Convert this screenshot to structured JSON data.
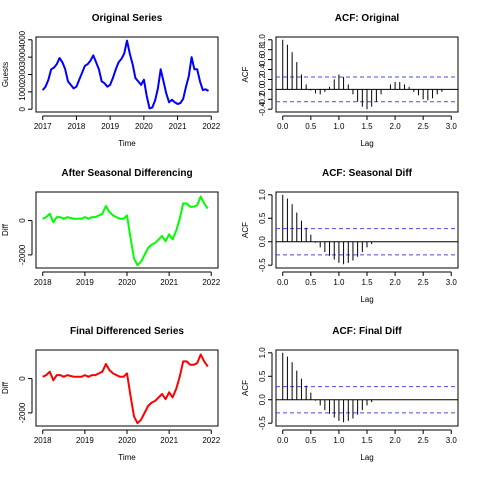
{
  "chart_data": [
    {
      "id": "original",
      "type": "line",
      "title": "Original Series",
      "xlabel": "Time",
      "ylabel": "Guests",
      "xlim": [
        2017,
        2022
      ],
      "ylim": [
        0,
        4000
      ],
      "xticks": [
        2017,
        2018,
        2019,
        2020,
        2021,
        2022
      ],
      "yticks": [
        0,
        1000,
        2000,
        3000,
        4000
      ],
      "color": "#0000ff",
      "series": [
        {
          "x": [
            2017.0,
            2017.083,
            2017.167,
            2017.25,
            2017.333,
            2017.417,
            2017.5,
            2017.583,
            2017.667,
            2017.75,
            2017.833,
            2017.917,
            2018.0,
            2018.083,
            2018.167,
            2018.25,
            2018.333,
            2018.417,
            2018.5,
            2018.583,
            2018.667,
            2018.75,
            2018.833,
            2018.917,
            2019.0,
            2019.083,
            2019.167,
            2019.25,
            2019.333,
            2019.417,
            2019.5,
            2019.583,
            2019.667,
            2019.75,
            2019.833,
            2019.917,
            2020.0,
            2020.083,
            2020.167,
            2020.25,
            2020.333,
            2020.417,
            2020.5,
            2020.583,
            2020.667,
            2020.75,
            2020.833,
            2020.917,
            2021.0,
            2021.083,
            2021.167,
            2021.25,
            2021.333,
            2021.417,
            2021.5,
            2021.583,
            2021.667,
            2021.75,
            2021.833,
            2021.917
          ],
          "y": [
            1100,
            1300,
            1700,
            2300,
            2400,
            2600,
            2950,
            2700,
            2300,
            1600,
            1400,
            1200,
            1300,
            1700,
            2100,
            2500,
            2600,
            2800,
            3100,
            2700,
            2300,
            1600,
            1500,
            1300,
            1400,
            1800,
            2300,
            2700,
            2900,
            3200,
            3950,
            3200,
            2600,
            1800,
            1600,
            1400,
            1700,
            800,
            50,
            100,
            500,
            1200,
            2300,
            1600,
            900,
            400,
            550,
            400,
            300,
            350,
            600,
            1300,
            1900,
            3000,
            2300,
            2300,
            1600,
            1100,
            1150,
            1050
          ]
        }
      ]
    },
    {
      "id": "acf-original",
      "type": "bar",
      "title": "ACF: Original",
      "xlabel": "Lag",
      "ylabel": "ACF",
      "xlim": [
        0,
        3.0
      ],
      "ylim": [
        -0.4,
        1.0
      ],
      "xticks": [
        0.0,
        0.5,
        1.0,
        1.5,
        2.0,
        2.5,
        3.0
      ],
      "yticks": [
        -0.4,
        -0.2,
        0.0,
        0.2,
        0.4,
        0.6,
        0.8,
        1.0
      ],
      "conf_bound": 0.25,
      "lags": [
        0,
        0.083,
        0.167,
        0.25,
        0.333,
        0.417,
        0.5,
        0.583,
        0.667,
        0.75,
        0.833,
        0.917,
        1.0,
        1.083,
        1.167,
        1.25,
        1.333,
        1.417,
        1.5,
        1.583,
        1.667,
        1.75,
        1.833,
        1.917,
        2.0,
        2.083,
        2.167,
        2.25,
        2.333,
        2.417,
        2.5,
        2.583,
        2.667,
        2.75,
        2.833,
        2.917,
        3.0
      ],
      "values": [
        1.0,
        0.9,
        0.75,
        0.55,
        0.3,
        0.1,
        -0.02,
        -0.08,
        -0.1,
        -0.05,
        0.05,
        0.2,
        0.3,
        0.25,
        0.1,
        -0.1,
        -0.25,
        -0.35,
        -0.4,
        -0.35,
        -0.25,
        -0.1,
        0.0,
        0.1,
        0.15,
        0.15,
        0.1,
        0.05,
        -0.05,
        -0.12,
        -0.2,
        -0.22,
        -0.18,
        -0.1,
        -0.05,
        0.0,
        0.0
      ]
    },
    {
      "id": "seasonal-diff",
      "type": "line",
      "title": "After Seasonal Differencing",
      "xlabel": "",
      "ylabel": "Diff",
      "xlim": [
        2018,
        2022
      ],
      "ylim": [
        -2600,
        1500
      ],
      "xticks": [
        2018,
        2019,
        2020,
        2021,
        2022
      ],
      "yticks": [
        -2000,
        0
      ],
      "color": "#00ff00",
      "series": [
        {
          "x": [
            2018.0,
            2018.083,
            2018.167,
            2018.25,
            2018.333,
            2018.417,
            2018.5,
            2018.583,
            2018.667,
            2018.75,
            2018.833,
            2018.917,
            2019.0,
            2019.083,
            2019.167,
            2019.25,
            2019.333,
            2019.417,
            2019.5,
            2019.583,
            2019.667,
            2019.75,
            2019.833,
            2019.917,
            2020.0,
            2020.083,
            2020.167,
            2020.25,
            2020.333,
            2020.417,
            2020.5,
            2020.583,
            2020.667,
            2020.75,
            2020.833,
            2020.917,
            2021.0,
            2021.083,
            2021.167,
            2021.25,
            2021.333,
            2021.417,
            2021.5,
            2021.583,
            2021.667,
            2021.75,
            2021.833,
            2021.917
          ],
          "y": [
            100,
            200,
            400,
            -100,
            200,
            200,
            100,
            200,
            150,
            100,
            100,
            100,
            200,
            100,
            200,
            200,
            300,
            400,
            850,
            500,
            300,
            200,
            100,
            100,
            300,
            -1000,
            -2200,
            -2600,
            -2400,
            -2000,
            -1600,
            -1400,
            -1300,
            -1100,
            -900,
            -1200,
            -800,
            -1100,
            -600,
            100,
            1000,
            1000,
            800,
            800,
            900,
            1400,
            1000,
            700
          ]
        }
      ]
    },
    {
      "id": "acf-seasonal-diff",
      "type": "bar",
      "title": "ACF: Seasonal Diff",
      "xlabel": "Lag",
      "ylabel": "ACF",
      "xlim": [
        0,
        3.0
      ],
      "ylim": [
        -0.5,
        1.0
      ],
      "xticks": [
        0.0,
        0.5,
        1.0,
        1.5,
        2.0,
        2.5,
        3.0
      ],
      "yticks": [
        -0.5,
        0.0,
        0.5,
        1.0
      ],
      "conf_bound": 0.28,
      "lags": [
        0,
        0.083,
        0.167,
        0.25,
        0.333,
        0.417,
        0.5,
        0.583,
        0.667,
        0.75,
        0.833,
        0.917,
        1.0,
        1.083,
        1.167,
        1.25,
        1.333,
        1.417,
        1.5,
        1.583,
        1.667,
        1.75,
        1.833,
        1.917,
        2.0,
        2.083,
        2.167,
        2.25,
        2.333,
        2.417,
        2.5,
        2.583,
        2.667,
        2.75,
        2.833,
        2.917,
        3.0
      ],
      "values": [
        1.0,
        0.92,
        0.8,
        0.62,
        0.45,
        0.3,
        0.15,
        -0.02,
        -0.12,
        -0.22,
        -0.3,
        -0.38,
        -0.45,
        -0.48,
        -0.45,
        -0.4,
        -0.32,
        -0.22,
        -0.12,
        -0.05,
        0.0,
        0.0,
        0.0,
        0.0,
        0.0,
        0.0,
        0.0,
        0.0,
        0.0,
        0.0,
        0.0,
        0.0,
        0.0,
        0.0,
        0.0,
        0.0,
        0.0
      ]
    },
    {
      "id": "final-diff",
      "type": "line",
      "title": "Final Differenced Series",
      "xlabel": "Time",
      "ylabel": "Diff",
      "xlim": [
        2018,
        2022
      ],
      "ylim": [
        -2600,
        1500
      ],
      "xticks": [
        2018,
        2019,
        2020,
        2021,
        2022
      ],
      "yticks": [
        -2000,
        0
      ],
      "color": "#ff0000",
      "series": [
        {
          "x": [
            2018.0,
            2018.083,
            2018.167,
            2018.25,
            2018.333,
            2018.417,
            2018.5,
            2018.583,
            2018.667,
            2018.75,
            2018.833,
            2018.917,
            2019.0,
            2019.083,
            2019.167,
            2019.25,
            2019.333,
            2019.417,
            2019.5,
            2019.583,
            2019.667,
            2019.75,
            2019.833,
            2019.917,
            2020.0,
            2020.083,
            2020.167,
            2020.25,
            2020.333,
            2020.417,
            2020.5,
            2020.583,
            2020.667,
            2020.75,
            2020.833,
            2020.917,
            2021.0,
            2021.083,
            2021.167,
            2021.25,
            2021.333,
            2021.417,
            2021.5,
            2021.583,
            2021.667,
            2021.75,
            2021.833,
            2021.917
          ],
          "y": [
            100,
            200,
            400,
            -100,
            200,
            200,
            100,
            200,
            150,
            100,
            100,
            100,
            200,
            100,
            200,
            200,
            300,
            400,
            850,
            500,
            300,
            200,
            100,
            100,
            300,
            -1000,
            -2200,
            -2600,
            -2400,
            -2000,
            -1600,
            -1400,
            -1300,
            -1100,
            -900,
            -1200,
            -800,
            -1100,
            -600,
            100,
            1000,
            1000,
            800,
            800,
            900,
            1400,
            1000,
            700
          ]
        }
      ]
    },
    {
      "id": "acf-final-diff",
      "type": "bar",
      "title": "ACF: Final Diff",
      "xlabel": "Lag",
      "ylabel": "ACF",
      "xlim": [
        0,
        3.0
      ],
      "ylim": [
        -0.5,
        1.0
      ],
      "xticks": [
        0.0,
        0.5,
        1.0,
        1.5,
        2.0,
        2.5,
        3.0
      ],
      "yticks": [
        -0.5,
        0.0,
        0.5,
        1.0
      ],
      "conf_bound": 0.28,
      "lags": [
        0,
        0.083,
        0.167,
        0.25,
        0.333,
        0.417,
        0.5,
        0.583,
        0.667,
        0.75,
        0.833,
        0.917,
        1.0,
        1.083,
        1.167,
        1.25,
        1.333,
        1.417,
        1.5,
        1.583,
        1.667,
        1.75,
        1.833,
        1.917,
        2.0,
        2.083,
        2.167,
        2.25,
        2.333,
        2.417,
        2.5,
        2.583,
        2.667,
        2.75,
        2.833,
        2.917,
        3.0
      ],
      "values": [
        1.0,
        0.92,
        0.8,
        0.62,
        0.45,
        0.3,
        0.15,
        -0.02,
        -0.12,
        -0.22,
        -0.3,
        -0.38,
        -0.45,
        -0.48,
        -0.45,
        -0.4,
        -0.32,
        -0.22,
        -0.12,
        -0.05,
        0.0,
        0.0,
        0.0,
        0.0,
        0.0,
        0.0,
        0.0,
        0.0,
        0.0,
        0.0,
        0.0,
        0.0,
        0.0,
        0.0,
        0.0,
        0.0,
        0.0
      ]
    }
  ]
}
